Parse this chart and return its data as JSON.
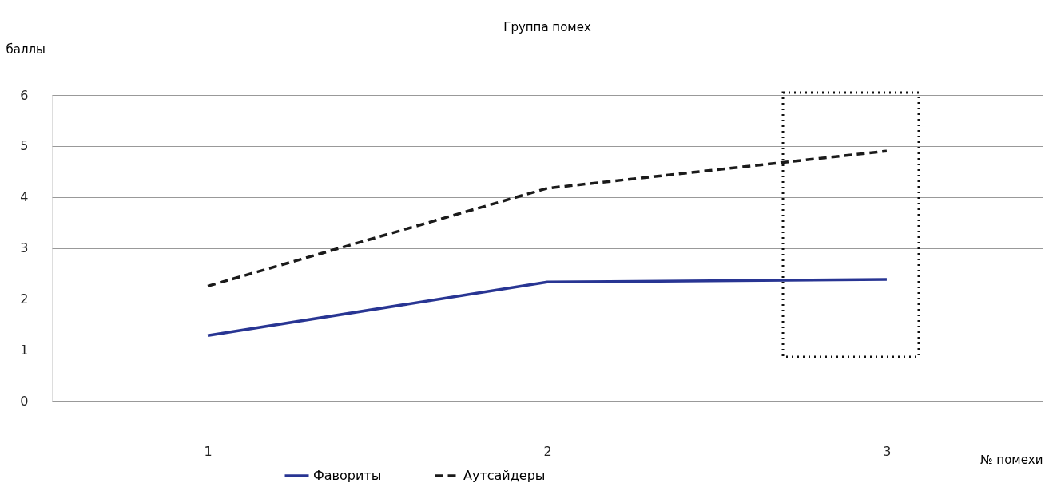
{
  "chart_data": {
    "type": "line",
    "title": "Группа помех",
    "xlabel": "№ помехи",
    "ylabel": "баллы",
    "categories": [
      "1",
      "2",
      "3"
    ],
    "series": [
      {
        "name": "Фавориты",
        "color": "#283593",
        "line_style": "solid",
        "values": [
          1.28,
          2.33,
          2.38
        ]
      },
      {
        "name": "Аутсайдеры",
        "color": "#1a1a1a",
        "line_style": "dashed",
        "values": [
          2.25,
          4.17,
          4.9
        ]
      }
    ],
    "ylim": [
      0,
      6
    ],
    "yticks": [
      0,
      1,
      2,
      3,
      4,
      5,
      6
    ],
    "grid": "y",
    "legend": "bottom"
  }
}
